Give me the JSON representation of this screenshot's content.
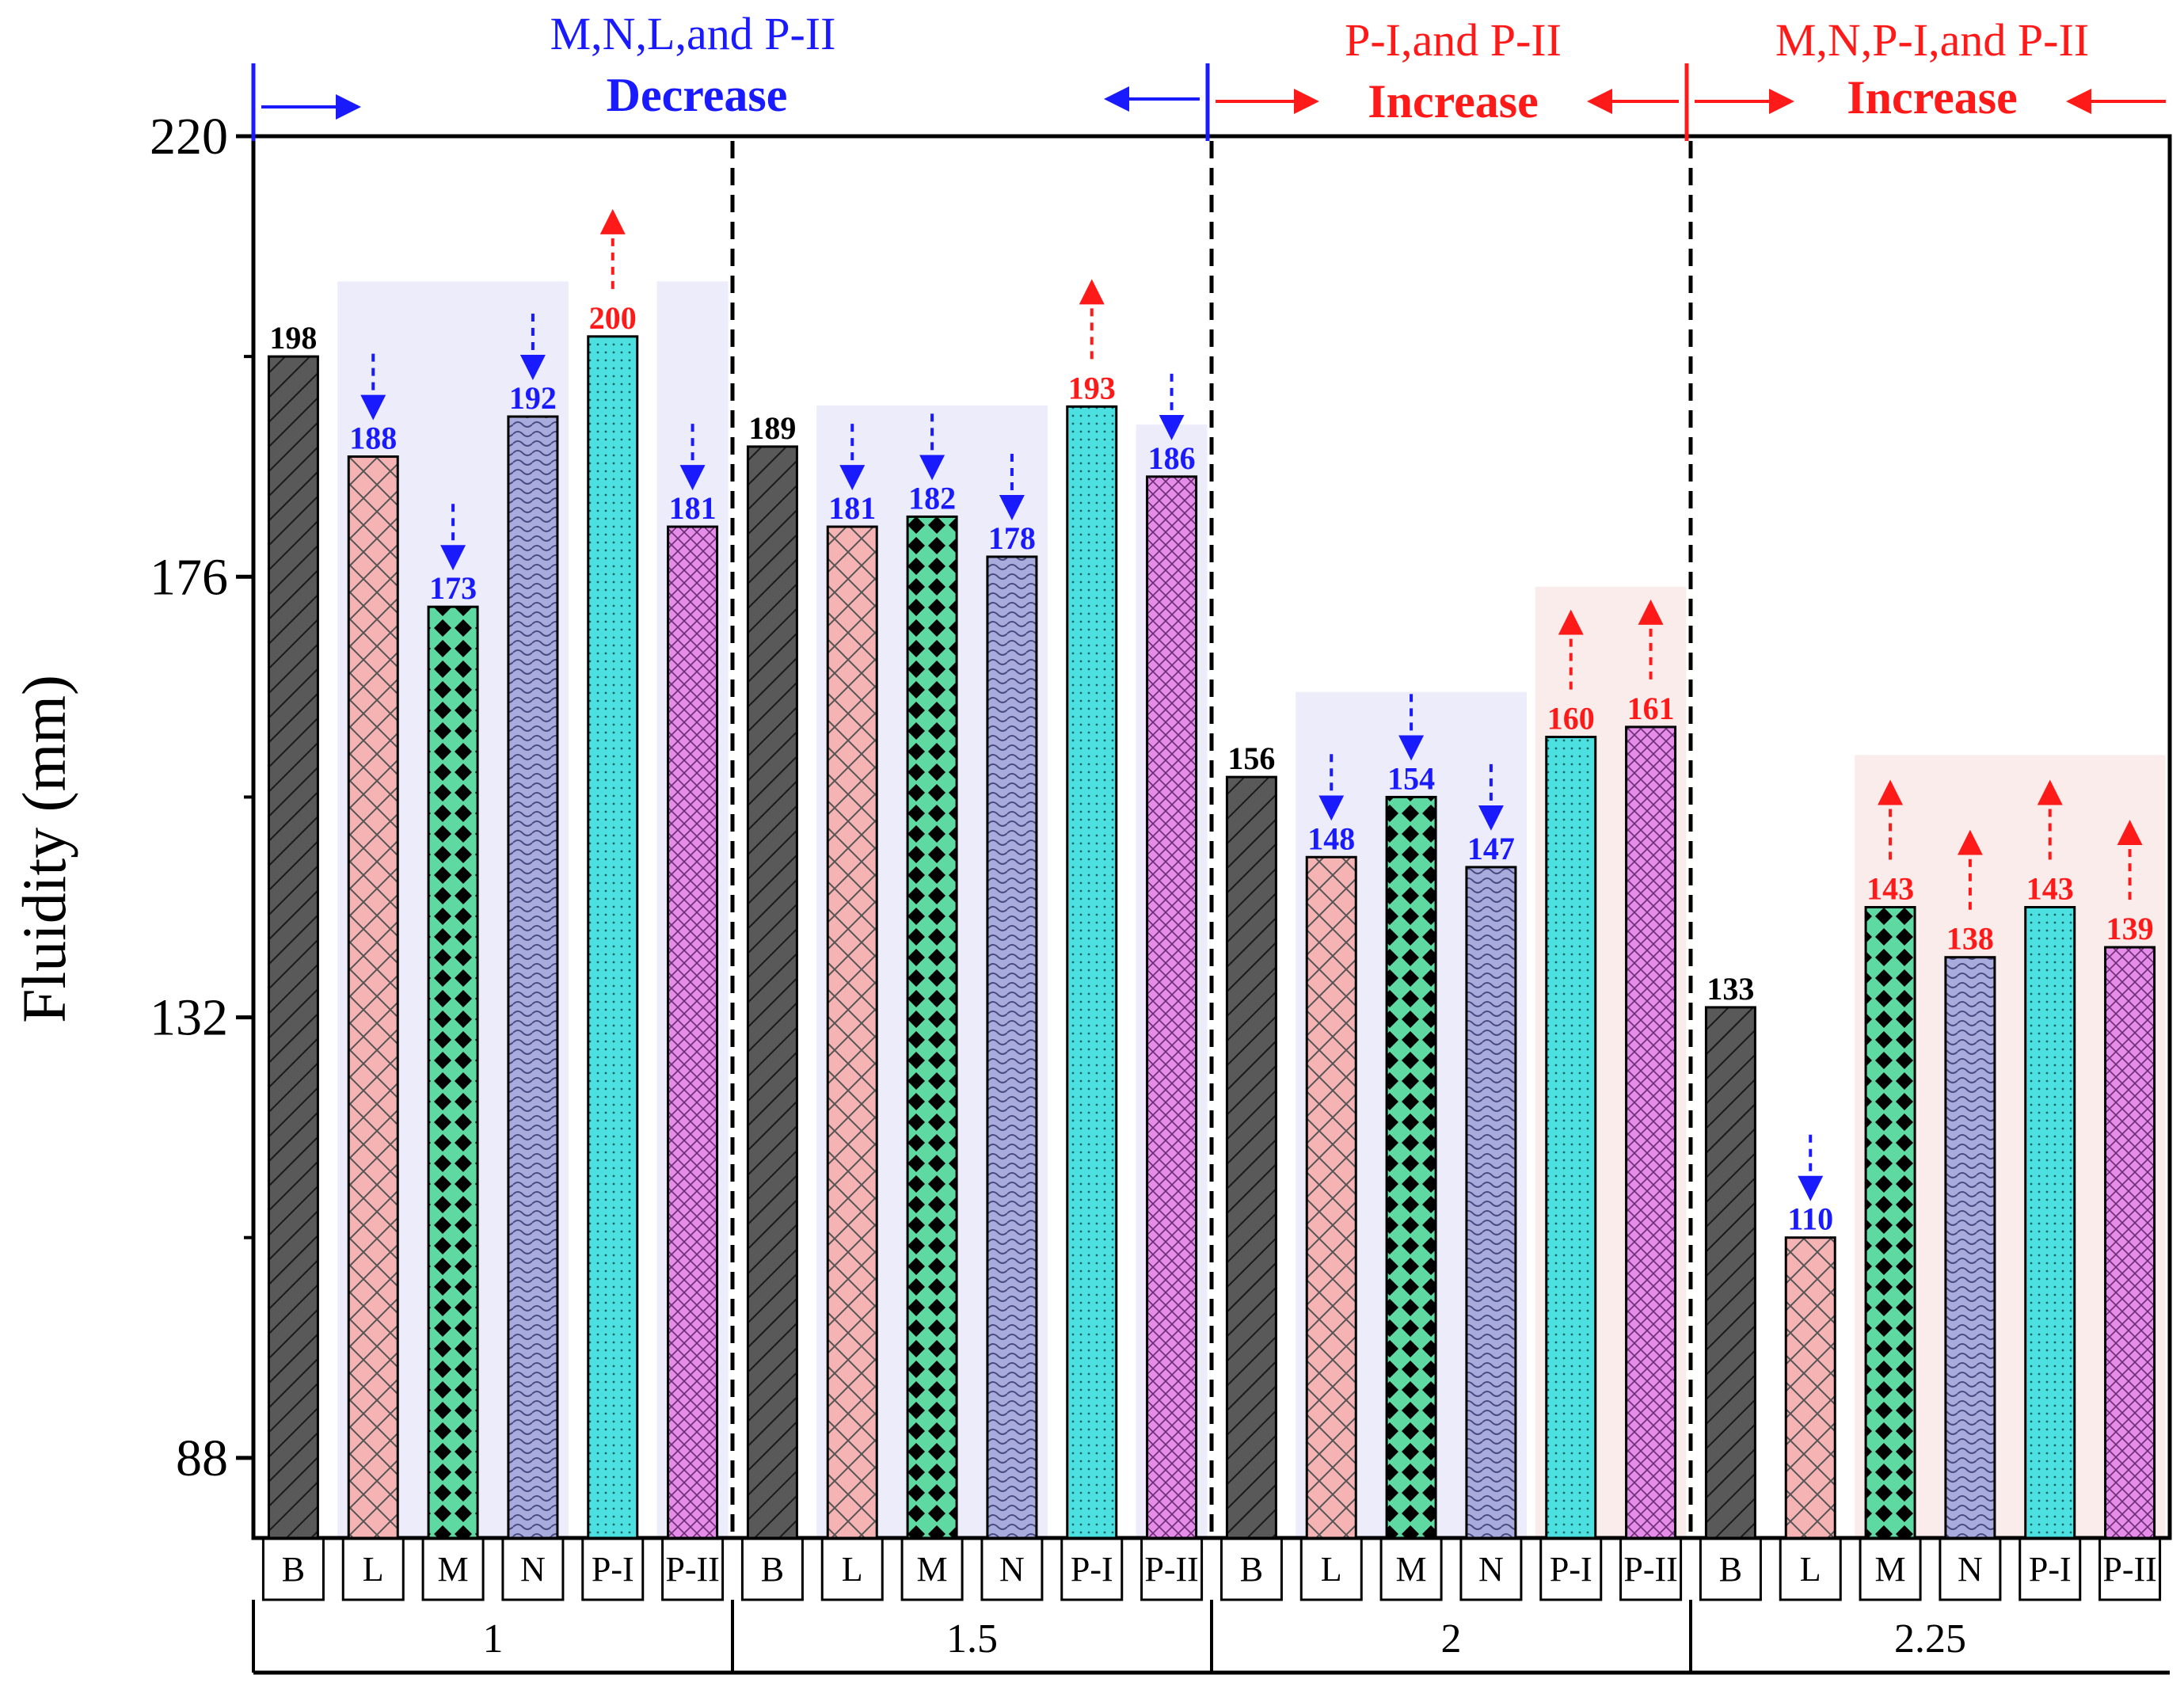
{
  "colors": {
    "axis": "#000000",
    "decrease": "#1a1aff",
    "increase": "#ff1a1a",
    "neutral_label": "#000000",
    "shade_decrease": "#ececfb",
    "shade_increase": "#fbecec",
    "bar_fill": {
      "B": "#595959",
      "L": "#f6b3b3",
      "M": "#5ed9a2",
      "N": "#a8acdd",
      "P-I": "#4de0e0",
      "P-II": "#e48de8"
    }
  },
  "annotations": {
    "g1": {
      "line1": "M,N,L,and P-II",
      "line2": "Decrease"
    },
    "g3": {
      "line1": "P-I,and P-II",
      "line2": "Increase"
    },
    "g4": {
      "line1": "M,N,P-I,and P-II",
      "line2": "Increase"
    }
  },
  "chart_data": {
    "type": "bar",
    "title": "",
    "xlabel": "",
    "ylabel": "Fluidity (mm)",
    "ylim": [
      80,
      220
    ],
    "yticks": [
      88,
      132,
      176,
      220
    ],
    "categories": [
      "B",
      "L",
      "M",
      "N",
      "P-I",
      "P-II"
    ],
    "groups": [
      {
        "label": "1",
        "values": [
          198,
          188,
          173,
          192,
          200,
          181
        ],
        "trend": [
          "none",
          "down",
          "down",
          "down",
          "up",
          "down"
        ]
      },
      {
        "label": "1.5",
        "values": [
          189,
          181,
          182,
          178,
          193,
          186
        ],
        "trend": [
          "none",
          "down",
          "down",
          "down",
          "up",
          "down"
        ]
      },
      {
        "label": "2",
        "values": [
          156,
          148,
          154,
          147,
          160,
          161
        ],
        "trend": [
          "none",
          "down",
          "down",
          "down",
          "up",
          "up"
        ]
      },
      {
        "label": "2.25",
        "values": [
          133,
          110,
          143,
          138,
          143,
          139
        ],
        "trend": [
          "none",
          "down",
          "up",
          "up",
          "up",
          "up"
        ]
      }
    ]
  }
}
